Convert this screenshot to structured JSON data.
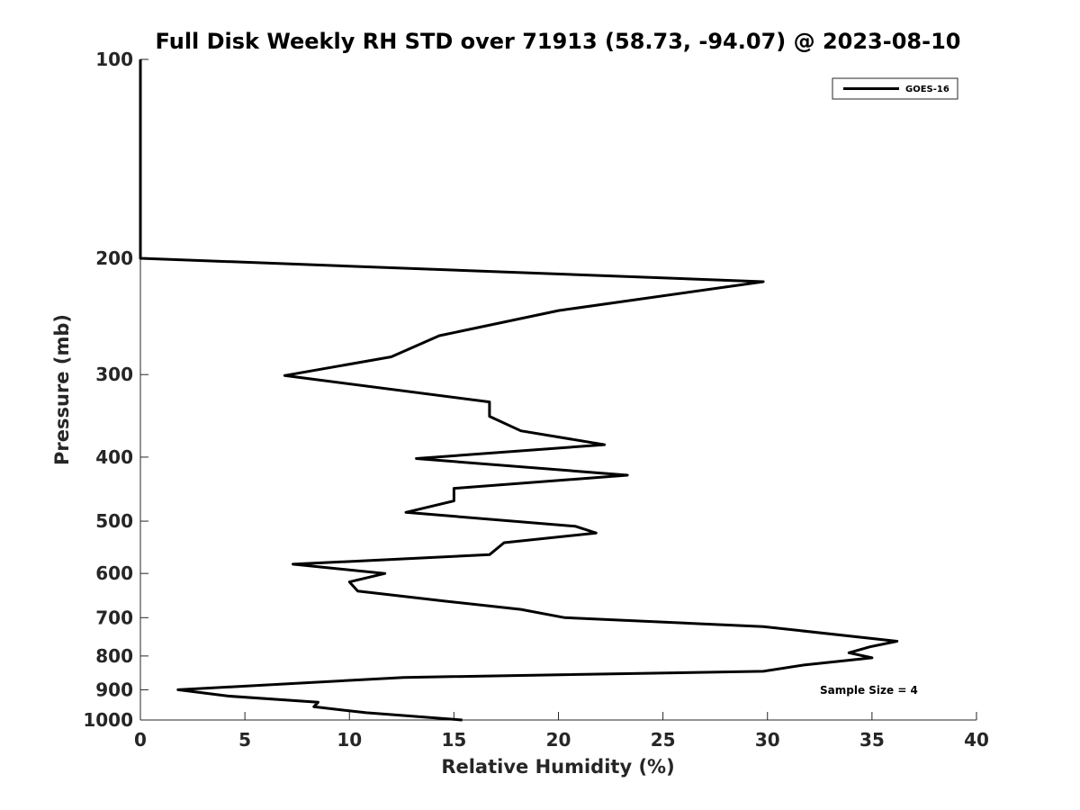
{
  "chart_data": {
    "type": "line",
    "title": "Full Disk Weekly RH STD over 71913 (58.73, -94.07) @ 2023-08-10",
    "xlabel": "Relative Humidity (%)",
    "ylabel": "Pressure (mb)",
    "xlim": [
      0,
      40
    ],
    "ylim": [
      100,
      1000
    ],
    "y_scale": "log",
    "y_reversed": true,
    "x_ticks": [
      "0",
      "5",
      "10",
      "15",
      "20",
      "25",
      "30",
      "35",
      "40"
    ],
    "y_ticks": [
      "100",
      "200",
      "300",
      "400",
      "500",
      "600",
      "700",
      "800",
      "900",
      "1000"
    ],
    "grid": false,
    "legend_position": "top-right",
    "series": [
      {
        "name": "GOES-16",
        "color": "#000000",
        "points": [
          [
            0,
            100
          ],
          [
            0,
            150
          ],
          [
            0,
            200
          ],
          [
            29.8,
            217
          ],
          [
            20,
            240
          ],
          [
            14.3,
            262
          ],
          [
            12,
            282
          ],
          [
            6.9,
            301
          ],
          [
            16.7,
            330
          ],
          [
            16.7,
            347
          ],
          [
            18.2,
            365
          ],
          [
            22.2,
            383
          ],
          [
            13.2,
            402
          ],
          [
            23.3,
            426
          ],
          [
            15,
            446
          ],
          [
            15,
            466
          ],
          [
            12.7,
            485
          ],
          [
            20.8,
            509
          ],
          [
            21.8,
            521
          ],
          [
            17.4,
            539
          ],
          [
            16.7,
            562
          ],
          [
            7.3,
            581
          ],
          [
            11.7,
            600
          ],
          [
            10,
            618
          ],
          [
            10.4,
            638
          ],
          [
            14.6,
            661
          ],
          [
            18.2,
            680
          ],
          [
            20.3,
            700
          ],
          [
            29.8,
            722
          ],
          [
            36.2,
            760
          ],
          [
            34.9,
            775
          ],
          [
            33.9,
            791
          ],
          [
            35,
            805
          ],
          [
            31.8,
            825
          ],
          [
            29.8,
            844
          ],
          [
            12.6,
            862
          ],
          [
            1.8,
            900
          ],
          [
            4.2,
            920
          ],
          [
            8.5,
            940
          ],
          [
            8.3,
            955
          ],
          [
            10.8,
            975
          ],
          [
            15.4,
            1000
          ]
        ]
      }
    ],
    "annotations": [
      "Sample Size = 4"
    ]
  }
}
